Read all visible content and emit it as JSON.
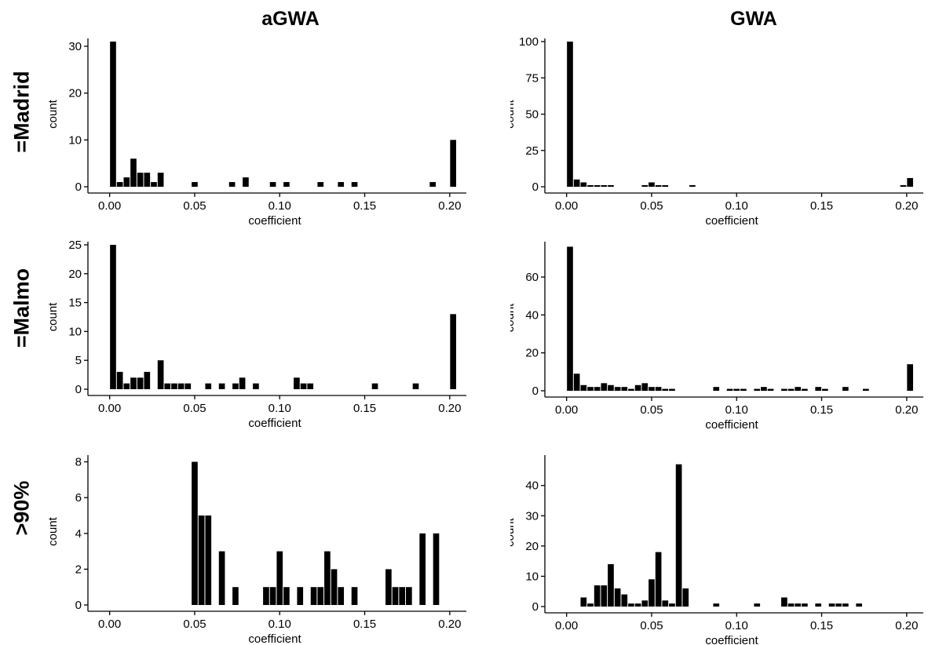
{
  "columns": [
    "aGWA",
    "GWA"
  ],
  "rows": [
    "=Madrid",
    "=Malmo",
    ">90%"
  ],
  "chart_data": [
    {
      "id": "agwa-madrid",
      "type": "bar",
      "title": "",
      "xlabel": "coefficient",
      "ylabel": "count",
      "xlim": [
        -0.01,
        0.207
      ],
      "ylim": [
        0,
        31
      ],
      "xticks": [
        0.0,
        0.05,
        0.1,
        0.15,
        0.2
      ],
      "xtick_labels": [
        "0.00",
        "0.05",
        "0.10",
        "0.15",
        "0.20"
      ],
      "yticks": [
        0,
        10,
        20,
        30
      ],
      "ytick_labels": [
        "0",
        "10",
        "20",
        "30"
      ],
      "bin_width": 0.004,
      "bars": [
        [
          0.0,
          31
        ],
        [
          0.004,
          1
        ],
        [
          0.008,
          2
        ],
        [
          0.012,
          6
        ],
        [
          0.016,
          3
        ],
        [
          0.02,
          3
        ],
        [
          0.024,
          1
        ],
        [
          0.028,
          3
        ],
        [
          0.048,
          1
        ],
        [
          0.07,
          1
        ],
        [
          0.078,
          2
        ],
        [
          0.094,
          1
        ],
        [
          0.102,
          1
        ],
        [
          0.122,
          1
        ],
        [
          0.134,
          1
        ],
        [
          0.142,
          1
        ],
        [
          0.188,
          1
        ],
        [
          0.2,
          10
        ]
      ]
    },
    {
      "id": "gwa-madrid",
      "type": "bar",
      "title": "",
      "xlabel": "coefficient",
      "ylabel": "count",
      "xlim": [
        -0.01,
        0.207
      ],
      "ylim": [
        0,
        100
      ],
      "xticks": [
        0.0,
        0.05,
        0.1,
        0.15,
        0.2
      ],
      "xtick_labels": [
        "0.00",
        "0.05",
        "0.10",
        "0.15",
        "0.20"
      ],
      "yticks": [
        0,
        25,
        50,
        75,
        100
      ],
      "ytick_labels": [
        "0",
        "25",
        "50",
        "75",
        "100"
      ],
      "bin_width": 0.004,
      "bars": [
        [
          0.0,
          100
        ],
        [
          0.004,
          5
        ],
        [
          0.008,
          3
        ],
        [
          0.012,
          1
        ],
        [
          0.016,
          1
        ],
        [
          0.02,
          1
        ],
        [
          0.024,
          1
        ],
        [
          0.044,
          1
        ],
        [
          0.048,
          3
        ],
        [
          0.052,
          1
        ],
        [
          0.056,
          1
        ],
        [
          0.072,
          1
        ],
        [
          0.196,
          1
        ],
        [
          0.2,
          6
        ]
      ]
    },
    {
      "id": "agwa-malmo",
      "type": "bar",
      "title": "",
      "xlabel": "coefficient",
      "ylabel": "count",
      "xlim": [
        -0.01,
        0.207
      ],
      "ylim": [
        0,
        25
      ],
      "xticks": [
        0.0,
        0.05,
        0.1,
        0.15,
        0.2
      ],
      "xtick_labels": [
        "0.00",
        "0.05",
        "0.10",
        "0.15",
        "0.20"
      ],
      "yticks": [
        0,
        5,
        10,
        15,
        20,
        25
      ],
      "ytick_labels": [
        "0",
        "5",
        "10",
        "15",
        "20",
        "25"
      ],
      "bin_width": 0.004,
      "bars": [
        [
          0.0,
          25
        ],
        [
          0.004,
          3
        ],
        [
          0.008,
          1
        ],
        [
          0.012,
          2
        ],
        [
          0.016,
          2
        ],
        [
          0.02,
          3
        ],
        [
          0.028,
          5
        ],
        [
          0.032,
          1
        ],
        [
          0.036,
          1
        ],
        [
          0.04,
          1
        ],
        [
          0.044,
          1
        ],
        [
          0.056,
          1
        ],
        [
          0.064,
          1
        ],
        [
          0.072,
          1
        ],
        [
          0.076,
          2
        ],
        [
          0.084,
          1
        ],
        [
          0.108,
          2
        ],
        [
          0.112,
          1
        ],
        [
          0.116,
          1
        ],
        [
          0.154,
          1
        ],
        [
          0.178,
          1
        ],
        [
          0.2,
          13
        ]
      ]
    },
    {
      "id": "gwa-malmo",
      "type": "bar",
      "title": "",
      "xlabel": "coefficient",
      "ylabel": "count",
      "xlim": [
        -0.01,
        0.207
      ],
      "ylim": [
        0,
        77
      ],
      "xticks": [
        0.0,
        0.05,
        0.1,
        0.15,
        0.2
      ],
      "xtick_labels": [
        "0.00",
        "0.05",
        "0.10",
        "0.15",
        "0.20"
      ],
      "yticks": [
        0,
        20,
        40,
        60
      ],
      "ytick_labels": [
        "0",
        "20",
        "40",
        "60"
      ],
      "bin_width": 0.004,
      "bars": [
        [
          0.0,
          76
        ],
        [
          0.004,
          9
        ],
        [
          0.008,
          3
        ],
        [
          0.012,
          2
        ],
        [
          0.016,
          2
        ],
        [
          0.02,
          4
        ],
        [
          0.024,
          3
        ],
        [
          0.028,
          2
        ],
        [
          0.032,
          2
        ],
        [
          0.036,
          1
        ],
        [
          0.04,
          3
        ],
        [
          0.044,
          4
        ],
        [
          0.048,
          2
        ],
        [
          0.052,
          2
        ],
        [
          0.056,
          1
        ],
        [
          0.06,
          1
        ],
        [
          0.086,
          2
        ],
        [
          0.094,
          1
        ],
        [
          0.098,
          1
        ],
        [
          0.102,
          1
        ],
        [
          0.11,
          1
        ],
        [
          0.114,
          2
        ],
        [
          0.118,
          1
        ],
        [
          0.126,
          1
        ],
        [
          0.13,
          1
        ],
        [
          0.134,
          2
        ],
        [
          0.138,
          1
        ],
        [
          0.146,
          2
        ],
        [
          0.15,
          1
        ],
        [
          0.162,
          2
        ],
        [
          0.174,
          1
        ],
        [
          0.2,
          14
        ]
      ]
    },
    {
      "id": "agwa-90",
      "type": "bar",
      "title": "",
      "xlabel": "coefficient",
      "ylabel": "count",
      "xlim": [
        -0.01,
        0.207
      ],
      "ylim": [
        0,
        8.2
      ],
      "xticks": [
        0.0,
        0.05,
        0.1,
        0.15,
        0.2
      ],
      "xtick_labels": [
        "0.00",
        "0.05",
        "0.10",
        "0.15",
        "0.20"
      ],
      "yticks": [
        0,
        2,
        4,
        6,
        8
      ],
      "ytick_labels": [
        "0",
        "2",
        "4",
        "6",
        "8"
      ],
      "bin_width": 0.004,
      "bars": [
        [
          0.048,
          8
        ],
        [
          0.052,
          5
        ],
        [
          0.056,
          5
        ],
        [
          0.064,
          3
        ],
        [
          0.072,
          1
        ],
        [
          0.09,
          1
        ],
        [
          0.094,
          1
        ],
        [
          0.098,
          3
        ],
        [
          0.102,
          1
        ],
        [
          0.11,
          1
        ],
        [
          0.118,
          1
        ],
        [
          0.122,
          1
        ],
        [
          0.126,
          3
        ],
        [
          0.13,
          2
        ],
        [
          0.134,
          1
        ],
        [
          0.142,
          1
        ],
        [
          0.162,
          2
        ],
        [
          0.166,
          1
        ],
        [
          0.17,
          1
        ],
        [
          0.174,
          1
        ],
        [
          0.182,
          4
        ],
        [
          0.19,
          4
        ]
      ]
    },
    {
      "id": "gwa-90",
      "type": "bar",
      "title": "",
      "xlabel": "coefficient",
      "ylabel": "count",
      "xlim": [
        -0.01,
        0.207
      ],
      "ylim": [
        0,
        49
      ],
      "xticks": [
        0.0,
        0.05,
        0.1,
        0.15,
        0.2
      ],
      "xtick_labels": [
        "0.00",
        "0.05",
        "0.10",
        "0.15",
        "0.20"
      ],
      "yticks": [
        0,
        10,
        20,
        30,
        40
      ],
      "ytick_labels": [
        "0",
        "10",
        "20",
        "30",
        "40"
      ],
      "bin_width": 0.004,
      "bars": [
        [
          0.008,
          3
        ],
        [
          0.012,
          1
        ],
        [
          0.016,
          7
        ],
        [
          0.02,
          7
        ],
        [
          0.024,
          14
        ],
        [
          0.028,
          6
        ],
        [
          0.032,
          4
        ],
        [
          0.036,
          1
        ],
        [
          0.04,
          1
        ],
        [
          0.044,
          2
        ],
        [
          0.048,
          9
        ],
        [
          0.052,
          18
        ],
        [
          0.056,
          2
        ],
        [
          0.06,
          1
        ],
        [
          0.064,
          47
        ],
        [
          0.068,
          6
        ],
        [
          0.086,
          1
        ],
        [
          0.11,
          1
        ],
        [
          0.126,
          3
        ],
        [
          0.13,
          1
        ],
        [
          0.134,
          1
        ],
        [
          0.138,
          1
        ],
        [
          0.146,
          1
        ],
        [
          0.154,
          1
        ],
        [
          0.158,
          1
        ],
        [
          0.162,
          1
        ],
        [
          0.17,
          1
        ]
      ]
    }
  ]
}
